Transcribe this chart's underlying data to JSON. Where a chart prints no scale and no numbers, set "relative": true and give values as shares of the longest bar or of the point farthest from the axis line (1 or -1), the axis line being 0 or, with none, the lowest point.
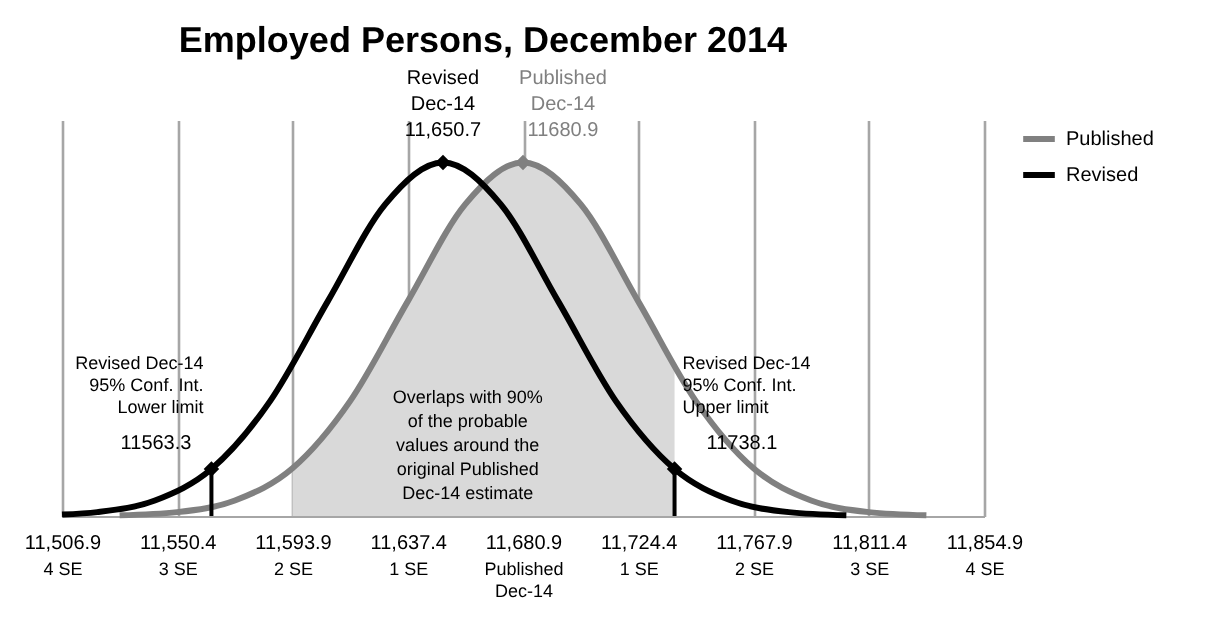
{
  "chart_data": {
    "type": "line",
    "title": "Employed Persons, December 2014",
    "relative": true,
    "grid": "x",
    "legend": "right",
    "xlim": [
      11506.9,
      11854.9
    ],
    "xticks": [
      {
        "value": 11506.9,
        "label": "11,506.9"
      },
      {
        "value": 11550.4,
        "label": "11,550.4"
      },
      {
        "value": 11593.9,
        "label": "11,593.9"
      },
      {
        "value": 11637.4,
        "label": "11,637.4"
      },
      {
        "value": 11680.9,
        "label": "11,680.9"
      },
      {
        "value": 11724.4,
        "label": "11,724.4"
      },
      {
        "value": 11767.9,
        "label": "11,767.9"
      },
      {
        "value": 11811.4,
        "label": "11,811.4"
      },
      {
        "value": 11854.9,
        "label": "11,854.9"
      }
    ],
    "x2lim": [
      -4,
      4
    ],
    "x2ticks": [
      {
        "value": -4,
        "label": "4 SE"
      },
      {
        "value": -3,
        "label": "3 SE"
      },
      {
        "value": -2,
        "label": "2 SE"
      },
      {
        "value": -1,
        "label": "1 SE"
      },
      {
        "value": 0,
        "label": "Published\nDec-14"
      },
      {
        "value": 1,
        "label": "1 SE"
      },
      {
        "value": 2,
        "label": "2 SE"
      },
      {
        "value": 3,
        "label": "3 SE"
      },
      {
        "value": 4,
        "label": "4 SE"
      }
    ],
    "series": [
      {
        "type": "area",
        "color": "#d9d9d9",
        "x": [
          11593.9,
          11615.65,
          11637.4,
          11659.15,
          11680.9,
          11702.65,
          11724.4,
          11738.1
        ],
        "values": [
          0.135,
          0.325,
          0.607,
          0.882,
          1,
          0.882,
          0.607,
          0.421
        ]
      },
      {
        "name": "Published",
        "color": "#808080",
        "x": [
          11528.65,
          11550.4,
          11572.15,
          11593.9,
          11615.65,
          11637.4,
          11659.15,
          11680.9,
          11702.65,
          11724.4,
          11746.15,
          11767.9,
          11789.65,
          11811.4,
          11833.15
        ],
        "values": [
          0.002,
          0.011,
          0.044,
          0.135,
          0.325,
          0.607,
          0.882,
          1,
          0.882,
          0.607,
          0.325,
          0.135,
          0.044,
          0.011,
          0.002
        ]
      },
      {
        "name": "Revised",
        "color": "#000000",
        "x": [
          11506.9,
          11520.2,
          11541.95,
          11563.3,
          11585.45,
          11607.2,
          11628.95,
          11650.7,
          11672.45,
          11694.2,
          11715.95,
          11738.1,
          11759.45,
          11781.2,
          11802.95
        ],
        "values": [
          0.004,
          0.011,
          0.044,
          0.133,
          0.325,
          0.607,
          0.882,
          1,
          0.882,
          0.607,
          0.325,
          0.133,
          0.044,
          0.011,
          0.002
        ]
      }
    ],
    "ref_lines": [
      {
        "axis": "x",
        "value": 11563.3,
        "label": "Revised Dec-14\n95% Conf. Int.\nLower limit",
        "color": "#000000"
      },
      {
        "axis": "x",
        "value": 11738.1,
        "label": "Revised Dec-14\n95% Conf. Int.\nUpper limit",
        "color": "#000000"
      }
    ],
    "annotations": [
      {
        "text": "Revised\nDec-14\n11,650.7",
        "x": 11650.7,
        "y": 1
      },
      {
        "text": "Published\nDec-14\n11680.9",
        "x": 11680.9,
        "y": 1
      },
      {
        "text": "11563.3",
        "x": 11563.3,
        "y": 0.133
      },
      {
        "text": "11738.1",
        "x": 11738.1,
        "y": 0.133
      },
      "Overlaps with 90%\nof the probable\nvalues around the\noriginal Published\nDec-14 estimate"
    ]
  }
}
